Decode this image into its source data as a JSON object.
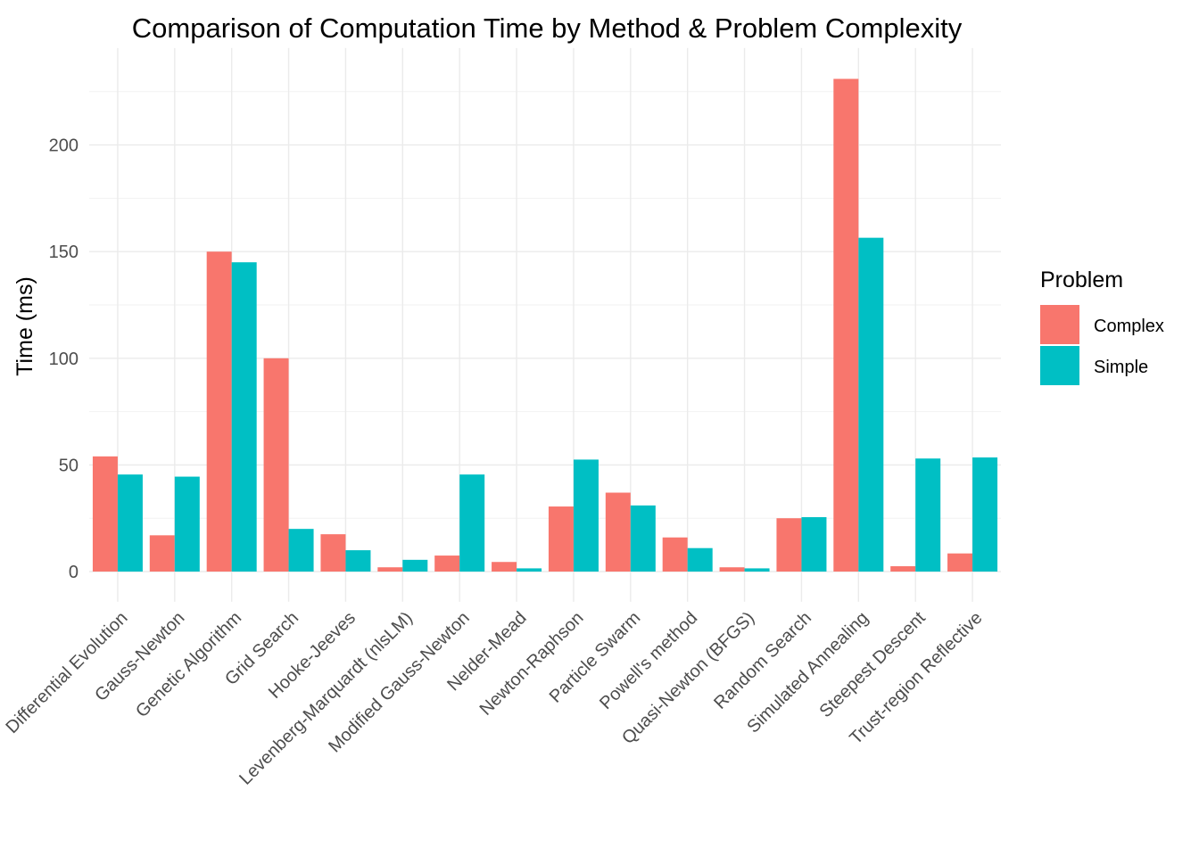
{
  "chart_data": {
    "type": "bar",
    "title": "Comparison of Computation Time by Method & Problem Complexity",
    "xlabel": "",
    "ylabel": "Time (ms)",
    "ylim": [
      -10,
      235
    ],
    "yticks": [
      0,
      50,
      100,
      150,
      200
    ],
    "grid": true,
    "legend": {
      "title": "Problem",
      "position": "right"
    },
    "categories": [
      "Differential Evolution",
      "Gauss-Newton",
      "Genetic Algorithm",
      "Grid Search",
      "Hooke-Jeeves",
      "Levenberg-Marquardt (nlsLM)",
      "Modified Gauss-Newton",
      "Nelder-Mead",
      "Newton-Raphson",
      "Particle Swarm",
      "Powell's method",
      "Quasi-Newton (BFGS)",
      "Random Search",
      "Simulated Annealing",
      "Steepest Descent",
      "Trust-region Reflective"
    ],
    "series": [
      {
        "name": "Complex",
        "color": "#F8766D",
        "values": [
          54,
          17,
          150,
          100,
          17.5,
          2,
          7.5,
          4.5,
          30.5,
          37,
          16,
          2,
          25,
          231,
          2.5,
          8.5
        ]
      },
      {
        "name": "Simple",
        "color": "#00BFC4",
        "values": [
          45.5,
          44.5,
          145,
          20,
          10,
          5.5,
          45.5,
          1.5,
          52.5,
          31,
          11,
          1.5,
          25.5,
          156.5,
          53,
          53.5
        ]
      }
    ]
  }
}
